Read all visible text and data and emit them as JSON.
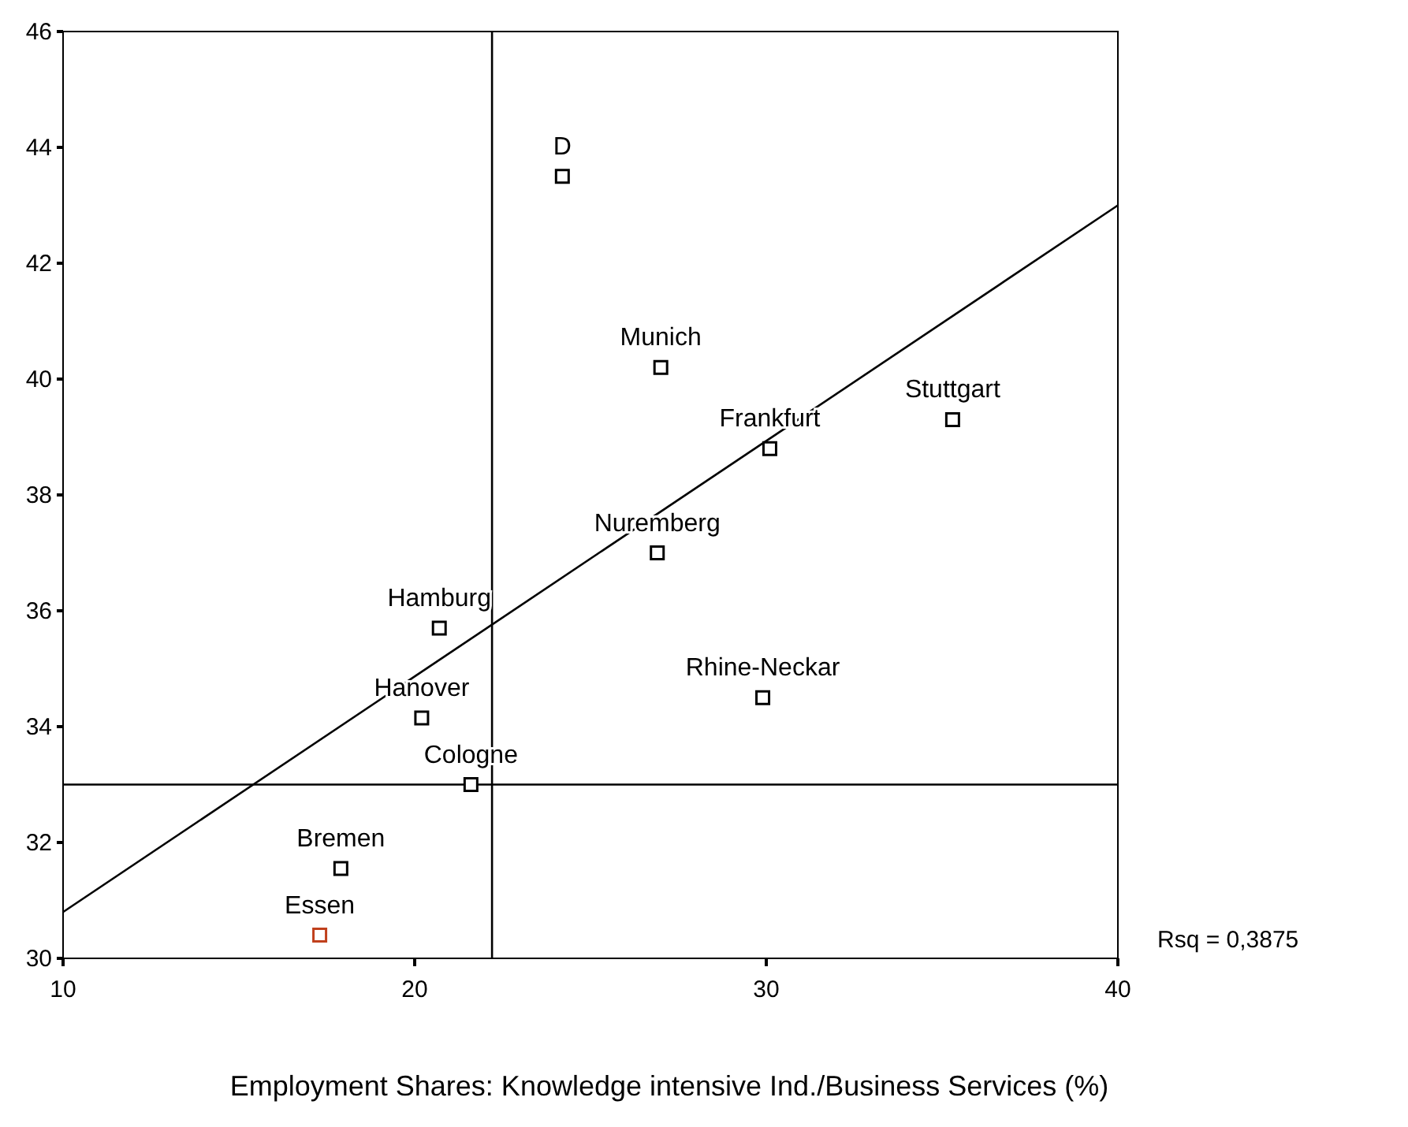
{
  "chart_data": {
    "type": "scatter",
    "xlabel": "Employment Shares: Knowledge intensive Ind./Business Services (%)",
    "xlim": [
      10,
      40
    ],
    "xticks": [
      10,
      20,
      30,
      40
    ],
    "ylim": [
      30,
      46
    ],
    "yticks": [
      30,
      32,
      34,
      36,
      38,
      40,
      42,
      44,
      46
    ],
    "grid": false,
    "series": [
      {
        "marker": "square",
        "x": [
          24.2,
          27.0,
          30.1,
          35.3,
          26.9,
          20.7,
          20.2,
          21.6,
          29.9,
          17.9,
          17.3
        ],
        "values": [
          43.5,
          40.2,
          38.8,
          39.3,
          37.0,
          35.7,
          34.15,
          33.0,
          34.5,
          31.55,
          30.4
        ],
        "colors": [
          "#000000",
          "#000000",
          "#000000",
          "#000000",
          "#000000",
          "#000000",
          "#000000",
          "#000000",
          "#000000",
          "#000000",
          "#c0401c"
        ]
      },
      {
        "type": "line",
        "x": [
          10,
          40
        ],
        "values": [
          30.8,
          43.0
        ],
        "color": "#000000",
        "line_style": "solid"
      }
    ],
    "ref_lines": [
      {
        "axis": "x",
        "value": 22.2,
        "color": "#000000"
      },
      {
        "axis": "y",
        "value": 33.0,
        "color": "#000000"
      }
    ],
    "annotations": [
      {
        "text": "D",
        "x": 24.2,
        "y": 43.5
      },
      {
        "text": "Munich",
        "x": 27.0,
        "y": 40.2
      },
      {
        "text": "Frankfurt",
        "x": 30.1,
        "y": 38.8
      },
      {
        "text": "Stuttgart",
        "x": 35.3,
        "y": 39.3
      },
      {
        "text": "Nuremberg",
        "x": 26.9,
        "y": 37.0
      },
      {
        "text": "Hamburg",
        "x": 20.7,
        "y": 35.7
      },
      {
        "text": "Hanover",
        "x": 20.2,
        "y": 34.15
      },
      {
        "text": "Cologne",
        "x": 21.6,
        "y": 33.0
      },
      {
        "text": "Rhine-Neckar",
        "x": 29.9,
        "y": 34.5
      },
      {
        "text": "Bremen",
        "x": 17.9,
        "y": 31.55
      },
      {
        "text": "Essen",
        "x": 17.3,
        "y": 30.4
      },
      "Rsq = 0,3875"
    ]
  }
}
